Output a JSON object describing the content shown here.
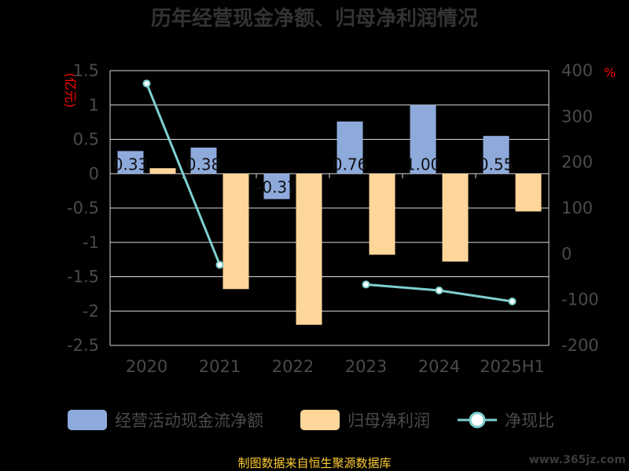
{
  "chart_data": {
    "type": "bar",
    "title": "历年经营现金净额、归母净利润情况",
    "categories": [
      "2020",
      "2021",
      "2022",
      "2023",
      "2024",
      "2025H1"
    ],
    "left_axis": {
      "unit": "(亿元)",
      "ticks": [
        "1.5",
        "1",
        "0.5",
        "0",
        "-0.5",
        "-1",
        "-1.5",
        "-2",
        "-2.5"
      ],
      "ylim": [
        -2.5,
        1.5
      ]
    },
    "right_axis": {
      "unit": "%",
      "ticks": [
        "400",
        "300",
        "200",
        "100",
        "0",
        "-100",
        "-200"
      ],
      "ylim": [
        -200,
        400
      ]
    },
    "series": [
      {
        "name": "经营活动现金流净额",
        "type": "bar",
        "color": "#8eaadb",
        "values": [
          0.33,
          0.38,
          -0.37,
          0.76,
          1.0,
          0.55
        ],
        "labels": [
          "0.33",
          "0.38",
          "-0.37",
          "0.76",
          "1.00",
          "0.55"
        ]
      },
      {
        "name": "归母净利润",
        "type": "bar",
        "color": "#ffd699",
        "values": [
          0.08,
          -1.68,
          -2.2,
          -1.18,
          -1.28,
          -0.55
        ]
      },
      {
        "name": "净现比",
        "type": "line",
        "axis": "right",
        "color": "#7ecfcf",
        "values": [
          372,
          -24,
          null,
          -67,
          -80,
          -104
        ]
      }
    ],
    "grid": true,
    "legend_position": "bottom"
  },
  "footer": {
    "source": "制图数据来自恒生聚源数据库",
    "watermark": "www.365jz.com"
  }
}
